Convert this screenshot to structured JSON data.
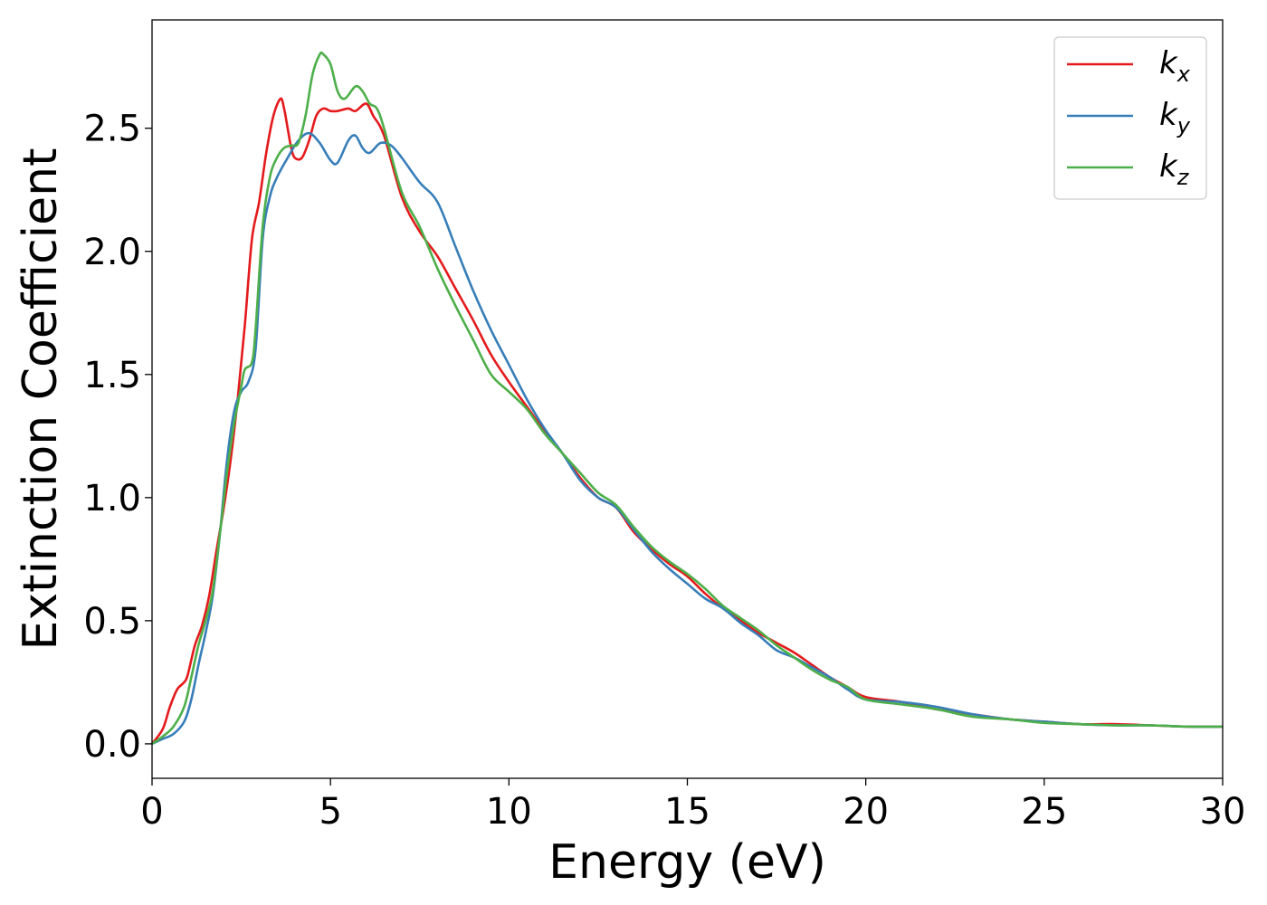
{
  "chart_data": {
    "type": "line",
    "title": "",
    "xlabel": "Energy (eV)",
    "ylabel": "Extinction Coefficient",
    "xlim": [
      0,
      30
    ],
    "ylim": [
      -0.14,
      2.94
    ],
    "xticks": [
      0,
      5,
      10,
      15,
      20,
      25,
      30
    ],
    "xtick_labels": [
      "0",
      "5",
      "10",
      "15",
      "20",
      "25",
      "30"
    ],
    "yticks": [
      0.0,
      0.5,
      1.0,
      1.5,
      2.0,
      2.5
    ],
    "ytick_labels": [
      "0.0",
      "0.5",
      "1.0",
      "1.5",
      "2.0",
      "2.5"
    ],
    "grid": false,
    "legend_position": "top-right",
    "series": [
      {
        "name": "k_x",
        "label_main": "k",
        "label_sub": "x",
        "color": "#e41a1c",
        "x": [
          0,
          0.3,
          0.5,
          0.7,
          0.9,
          1.0,
          1.2,
          1.4,
          1.6,
          1.8,
          2.0,
          2.2,
          2.4,
          2.6,
          2.8,
          3.0,
          3.2,
          3.4,
          3.6,
          3.7,
          3.8,
          3.9,
          4.0,
          4.2,
          4.4,
          4.6,
          4.8,
          5.0,
          5.2,
          5.5,
          5.7,
          6.0,
          6.2,
          6.5,
          7.0,
          7.5,
          8.0,
          8.5,
          9.0,
          9.5,
          10.0,
          10.5,
          11.0,
          11.5,
          12.0,
          12.5,
          13.0,
          13.5,
          14.0,
          14.5,
          15.0,
          15.5,
          16.0,
          16.5,
          17.0,
          17.5,
          18.0,
          18.5,
          19.0,
          19.5,
          20.0,
          21.0,
          22.0,
          23.0,
          24.0,
          25.0,
          26.0,
          27.0,
          28.0,
          29.0,
          30.0
        ],
        "y": [
          0.0,
          0.06,
          0.15,
          0.22,
          0.25,
          0.28,
          0.4,
          0.48,
          0.6,
          0.78,
          0.95,
          1.15,
          1.4,
          1.7,
          2.05,
          2.2,
          2.4,
          2.55,
          2.62,
          2.58,
          2.5,
          2.42,
          2.38,
          2.38,
          2.45,
          2.55,
          2.58,
          2.57,
          2.57,
          2.58,
          2.57,
          2.6,
          2.55,
          2.47,
          2.22,
          2.08,
          1.98,
          1.85,
          1.72,
          1.58,
          1.47,
          1.37,
          1.27,
          1.18,
          1.08,
          1.0,
          0.96,
          0.86,
          0.79,
          0.73,
          0.68,
          0.61,
          0.55,
          0.5,
          0.45,
          0.41,
          0.37,
          0.32,
          0.27,
          0.23,
          0.19,
          0.17,
          0.14,
          0.12,
          0.1,
          0.09,
          0.08,
          0.08,
          0.075,
          0.07,
          0.07
        ]
      },
      {
        "name": "k_y",
        "label_main": "k",
        "label_sub": "y",
        "color": "#377eb8",
        "x": [
          0,
          0.3,
          0.6,
          0.9,
          1.1,
          1.3,
          1.5,
          1.7,
          1.9,
          2.1,
          2.3,
          2.5,
          2.7,
          2.9,
          3.1,
          3.3,
          3.5,
          3.8,
          4.1,
          4.4,
          4.7,
          5.0,
          5.2,
          5.5,
          5.7,
          5.9,
          6.1,
          6.4,
          6.7,
          7.0,
          7.5,
          8.0,
          8.5,
          9.0,
          9.5,
          10.0,
          10.5,
          11.0,
          11.5,
          12.0,
          12.5,
          13.0,
          13.5,
          14.0,
          14.5,
          15.0,
          15.5,
          16.0,
          16.5,
          17.0,
          17.5,
          18.0,
          18.5,
          19.0,
          19.5,
          20.0,
          21.0,
          22.0,
          23.0,
          24.0,
          25.0,
          26.0,
          27.0,
          28.0,
          29.0,
          30.0
        ],
        "y": [
          0.0,
          0.02,
          0.04,
          0.09,
          0.18,
          0.32,
          0.45,
          0.6,
          0.85,
          1.15,
          1.35,
          1.43,
          1.47,
          1.6,
          2.05,
          2.22,
          2.3,
          2.38,
          2.45,
          2.48,
          2.44,
          2.37,
          2.36,
          2.45,
          2.47,
          2.42,
          2.4,
          2.44,
          2.43,
          2.38,
          2.28,
          2.2,
          2.02,
          1.84,
          1.68,
          1.54,
          1.4,
          1.28,
          1.18,
          1.07,
          1.0,
          0.96,
          0.87,
          0.78,
          0.71,
          0.65,
          0.59,
          0.55,
          0.49,
          0.44,
          0.38,
          0.35,
          0.31,
          0.27,
          0.22,
          0.18,
          0.17,
          0.15,
          0.12,
          0.1,
          0.09,
          0.08,
          0.075,
          0.075,
          0.07,
          0.07
        ]
      },
      {
        "name": "k_z",
        "label_main": "k",
        "label_sub": "z",
        "color": "#4daf4a",
        "x": [
          0,
          0.3,
          0.6,
          0.9,
          1.1,
          1.3,
          1.5,
          1.7,
          1.9,
          2.1,
          2.3,
          2.5,
          2.6,
          2.8,
          2.9,
          3.1,
          3.3,
          3.5,
          3.7,
          3.9,
          4.1,
          4.3,
          4.5,
          4.7,
          4.8,
          5.0,
          5.2,
          5.4,
          5.7,
          5.9,
          6.1,
          6.3,
          6.5,
          7.0,
          7.5,
          8.0,
          8.5,
          9.0,
          9.5,
          10.0,
          10.5,
          11.0,
          11.5,
          12.0,
          12.5,
          13.0,
          13.5,
          14.0,
          14.5,
          15.0,
          15.5,
          16.0,
          16.5,
          17.0,
          17.5,
          18.0,
          18.5,
          19.0,
          19.5,
          20.0,
          21.0,
          22.0,
          23.0,
          24.0,
          25.0,
          26.0,
          27.0,
          28.0,
          29.0,
          30.0
        ],
        "y": [
          0.0,
          0.03,
          0.07,
          0.15,
          0.27,
          0.4,
          0.5,
          0.62,
          0.85,
          1.1,
          1.3,
          1.45,
          1.52,
          1.55,
          1.68,
          2.1,
          2.3,
          2.38,
          2.42,
          2.43,
          2.44,
          2.55,
          2.72,
          2.8,
          2.8,
          2.76,
          2.65,
          2.62,
          2.67,
          2.65,
          2.6,
          2.58,
          2.5,
          2.24,
          2.1,
          1.93,
          1.78,
          1.64,
          1.5,
          1.43,
          1.36,
          1.26,
          1.18,
          1.1,
          1.02,
          0.97,
          0.88,
          0.8,
          0.74,
          0.69,
          0.63,
          0.56,
          0.51,
          0.46,
          0.4,
          0.35,
          0.3,
          0.26,
          0.23,
          0.18,
          0.16,
          0.14,
          0.11,
          0.1,
          0.085,
          0.08,
          0.075,
          0.075,
          0.07,
          0.07
        ]
      }
    ]
  }
}
